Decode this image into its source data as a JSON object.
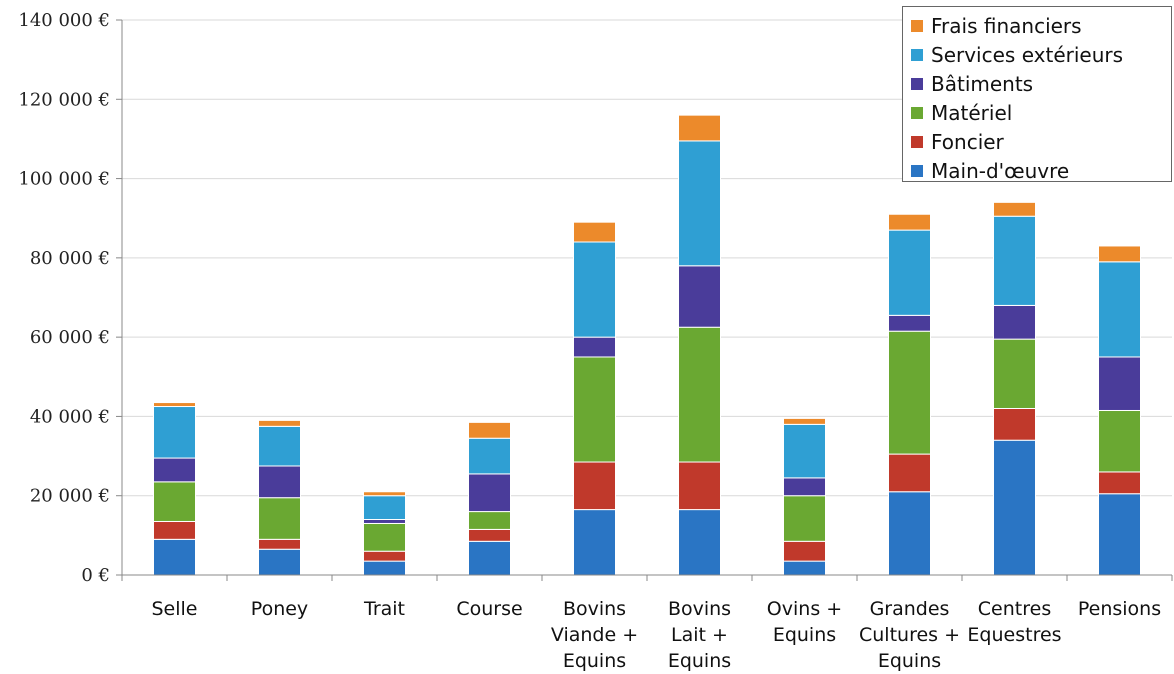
{
  "chart_data": {
    "type": "bar",
    "stacked": true,
    "categories": [
      [
        "Selle"
      ],
      [
        "Poney"
      ],
      [
        "Trait"
      ],
      [
        "Course"
      ],
      [
        "Bovins",
        "Viande +",
        "Equins"
      ],
      [
        "Bovins",
        "Lait +",
        "Equins"
      ],
      [
        "Ovins +",
        "Equins"
      ],
      [
        "Grandes",
        "Cultures +",
        "Equins"
      ],
      [
        "Centres",
        "Equestres"
      ],
      [
        "Pensions"
      ]
    ],
    "series": [
      {
        "name": "Main-d'œuvre",
        "color": "#2a75c4",
        "values": [
          9000,
          6500,
          3500,
          8500,
          16500,
          16500,
          3500,
          21000,
          34000,
          20500
        ]
      },
      {
        "name": "Foncier",
        "color": "#c0392b",
        "values": [
          4500,
          2500,
          2500,
          3000,
          12000,
          12000,
          5000,
          9500,
          8000,
          5500
        ]
      },
      {
        "name": "Matériel",
        "color": "#6aa832",
        "values": [
          10000,
          10500,
          7000,
          4500,
          26500,
          34000,
          11500,
          31000,
          17500,
          15500
        ]
      },
      {
        "name": "Bâtiments",
        "color": "#4a3c9a",
        "values": [
          6000,
          8000,
          1000,
          9500,
          5000,
          15500,
          4500,
          4000,
          8500,
          13500
        ]
      },
      {
        "name": "Services extérieurs",
        "color": "#2f9fd3",
        "values": [
          13000,
          10000,
          6000,
          9000,
          24000,
          31500,
          13500,
          21500,
          22500,
          24000
        ]
      },
      {
        "name": "Frais financiers",
        "color": "#ec8a2b",
        "values": [
          1000,
          1500,
          1000,
          4000,
          5000,
          6500,
          1500,
          4000,
          3500,
          4000
        ]
      }
    ],
    "legend_order": [
      "Frais financiers",
      "Services extérieurs",
      "Bâtiments",
      "Matériel",
      "Foncier",
      "Main-d'œuvre"
    ],
    "yticks": [
      "0 €",
      "20 000 €",
      "40 000 €",
      "60 000 €",
      "80 000 €",
      "100 000 €",
      "120 000 €",
      "140 000 €"
    ],
    "ylim": [
      0,
      140000
    ],
    "grid": true,
    "legend_position": "top-right"
  }
}
